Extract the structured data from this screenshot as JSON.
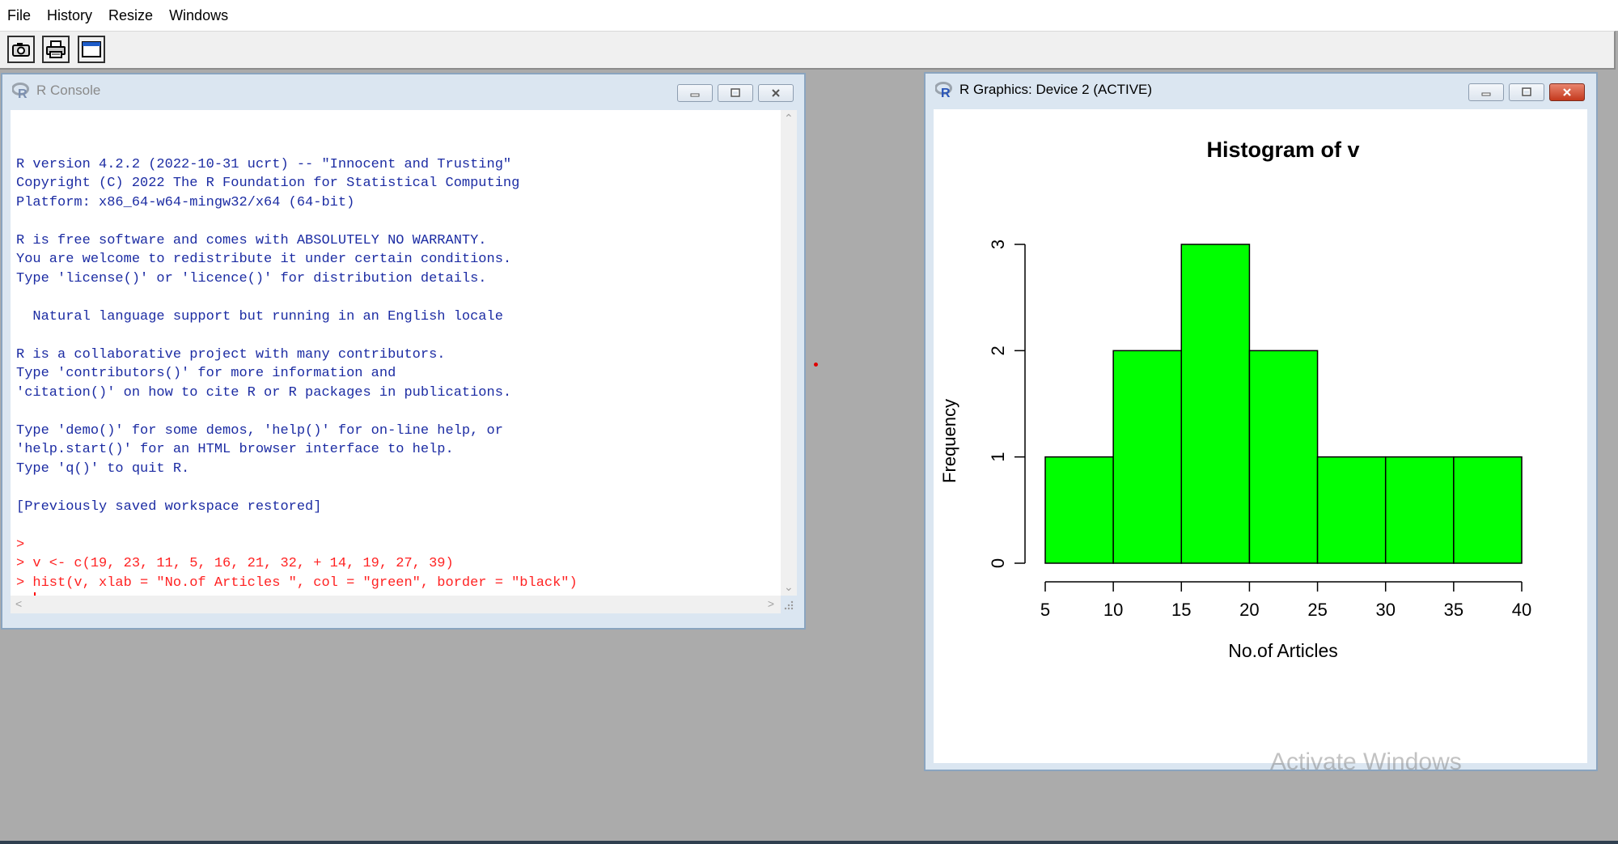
{
  "menubar": {
    "items": [
      "File",
      "History",
      "Resize",
      "Windows"
    ]
  },
  "toolbar": {
    "buttons": [
      {
        "name": "camera-icon"
      },
      {
        "name": "printer-icon"
      },
      {
        "name": "window-icon"
      }
    ]
  },
  "console": {
    "title": "R Console",
    "lines": [
      {
        "text": "",
        "kind": "out"
      },
      {
        "text": "R version 4.2.2 (2022-10-31 ucrt) -- \"Innocent and Trusting\"",
        "kind": "out"
      },
      {
        "text": "Copyright (C) 2022 The R Foundation for Statistical Computing",
        "kind": "out"
      },
      {
        "text": "Platform: x86_64-w64-mingw32/x64 (64-bit)",
        "kind": "out"
      },
      {
        "text": "",
        "kind": "out"
      },
      {
        "text": "R is free software and comes with ABSOLUTELY NO WARRANTY.",
        "kind": "out"
      },
      {
        "text": "You are welcome to redistribute it under certain conditions.",
        "kind": "out"
      },
      {
        "text": "Type 'license()' or 'licence()' for distribution details.",
        "kind": "out"
      },
      {
        "text": "",
        "kind": "out"
      },
      {
        "text": "  Natural language support but running in an English locale",
        "kind": "out"
      },
      {
        "text": "",
        "kind": "out"
      },
      {
        "text": "R is a collaborative project with many contributors.",
        "kind": "out"
      },
      {
        "text": "Type 'contributors()' for more information and",
        "kind": "out"
      },
      {
        "text": "'citation()' on how to cite R or R packages in publications.",
        "kind": "out"
      },
      {
        "text": "",
        "kind": "out"
      },
      {
        "text": "Type 'demo()' for some demos, 'help()' for on-line help, or",
        "kind": "out"
      },
      {
        "text": "'help.start()' for an HTML browser interface to help.",
        "kind": "out"
      },
      {
        "text": "Type 'q()' to quit R.",
        "kind": "out"
      },
      {
        "text": "",
        "kind": "out"
      },
      {
        "text": "[Previously saved workspace restored]",
        "kind": "out"
      },
      {
        "text": "",
        "kind": "out"
      },
      {
        "text": ">",
        "kind": "cmd"
      },
      {
        "text": "> v <- c(19, 23, 11, 5, 16, 21, 32, + 14, 19, 27, 39)",
        "kind": "cmd"
      },
      {
        "text": "> hist(v, xlab = \"No.of Articles \", col = \"green\", border = \"black\")",
        "kind": "cmd"
      },
      {
        "text": "> ",
        "kind": "cmd",
        "caret": true
      }
    ]
  },
  "graphics": {
    "title": "R Graphics: Device 2 (ACTIVE)"
  },
  "watermark": {
    "text": "Activate Windows"
  },
  "colors": {
    "console_output": "#1c2ca3",
    "console_command": "#ff2222",
    "bar_fill": "#00ff00",
    "bar_border": "#000000"
  },
  "chart_data": {
    "type": "bar",
    "title": "Histogram of v",
    "xlabel": "No.of Articles",
    "ylabel": "Frequency",
    "bins": [
      [
        5,
        10
      ],
      [
        10,
        15
      ],
      [
        15,
        20
      ],
      [
        20,
        25
      ],
      [
        25,
        30
      ],
      [
        30,
        35
      ],
      [
        35,
        40
      ]
    ],
    "values": [
      1,
      2,
      3,
      2,
      1,
      1,
      1
    ],
    "x_ticks": [
      "5",
      "10",
      "15",
      "20",
      "25",
      "30",
      "35",
      "40"
    ],
    "y_ticks": [
      "0",
      "1",
      "2",
      "3"
    ],
    "xlim": [
      5,
      40
    ],
    "ylim": [
      0,
      3
    ],
    "grid": false,
    "legend": "none"
  }
}
